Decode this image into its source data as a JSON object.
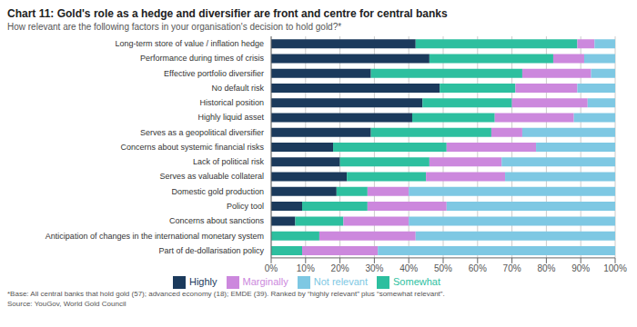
{
  "chart_data": {
    "type": "bar",
    "orientation": "horizontal",
    "stacked": true,
    "title": "Chart 11: Gold's role as a hedge and diversifier are front and centre for central banks",
    "subtitle": "How relevant are the following factors in your organisation's decision to hold gold?*",
    "annotations": [
      "*Base: All central banks that hold gold (57); advanced economy (18); EMDE (39). Ranked by “highly relevant” plus “somewhat relevant”.",
      "Source:  YouGov, World Gold Council"
    ],
    "categories": [
      "Long-term store of value / inflation hedge",
      "Performance during times of crisis",
      "Effective portfolio diversifier",
      "No default risk",
      "Historical position",
      "Highly liquid asset",
      "Serves as a geopolitical diversifier",
      "Concerns about systemic financial risks",
      "Lack of political risk",
      "Serves as valuable collateral",
      "Domestic gold production",
      "Policy tool",
      "Concerns about sanctions",
      "Anticipation of changes in the international monetary system",
      "Part of de-dollarisation policy"
    ],
    "series": [
      {
        "name": "Highly",
        "color": "#1b3a5c",
        "values": [
          42,
          46,
          29,
          49,
          44,
          41,
          29,
          18,
          20,
          22,
          19,
          9,
          7,
          0,
          0
        ]
      },
      {
        "name": "Somewhat",
        "color": "#2dbf9f",
        "values": [
          47,
          36,
          44,
          22,
          26,
          24,
          35,
          33,
          26,
          23,
          9,
          19,
          14,
          14,
          9
        ]
      },
      {
        "name": "Marginally",
        "color": "#cc88dd",
        "values": [
          5,
          9,
          20,
          18,
          22,
          23,
          9,
          26,
          21,
          23,
          12,
          23,
          19,
          28,
          22
        ]
      },
      {
        "name": "Not relevant",
        "color": "#7ec8e3",
        "values": [
          6,
          9,
          7,
          11,
          8,
          12,
          27,
          23,
          33,
          32,
          60,
          49,
          60,
          58,
          69
        ]
      }
    ],
    "xlim": [
      0,
      100
    ],
    "xticks": [
      {
        "value": 0,
        "label": "0%"
      },
      {
        "value": 10,
        "label": "10%"
      },
      {
        "value": 20,
        "label": "20%"
      },
      {
        "value": 30,
        "label": "30%"
      },
      {
        "value": 40,
        "label": "40%"
      },
      {
        "value": 50,
        "label": "50%"
      },
      {
        "value": 60,
        "label": "60%"
      },
      {
        "value": 70,
        "label": "70%"
      },
      {
        "value": 80,
        "label": "80%"
      },
      {
        "value": 90,
        "label": "90%"
      },
      {
        "value": 100,
        "label": "100%"
      }
    ],
    "grid": true,
    "legend": "bottom"
  }
}
